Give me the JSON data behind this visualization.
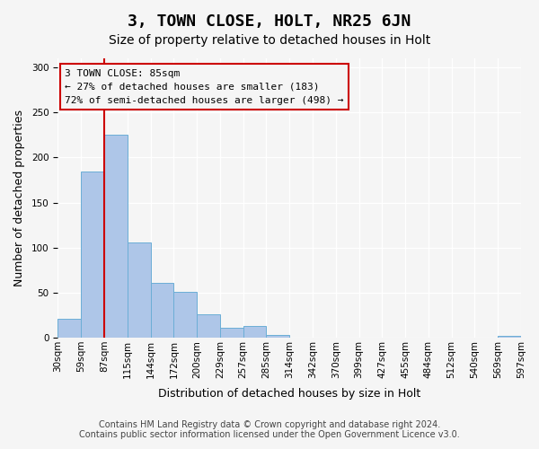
{
  "title": "3, TOWN CLOSE, HOLT, NR25 6JN",
  "subtitle": "Size of property relative to detached houses in Holt",
  "xlabel": "Distribution of detached houses by size in Holt",
  "ylabel": "Number of detached properties",
  "bar_values": [
    21,
    184,
    225,
    106,
    61,
    51,
    26,
    11,
    13,
    3,
    0,
    0,
    0,
    0,
    0,
    0,
    0,
    0,
    0,
    2
  ],
  "bin_labels": [
    "30sqm",
    "59sqm",
    "87sqm",
    "115sqm",
    "144sqm",
    "172sqm",
    "200sqm",
    "229sqm",
    "257sqm",
    "285sqm",
    "314sqm",
    "342sqm",
    "370sqm",
    "399sqm",
    "427sqm",
    "455sqm",
    "484sqm",
    "512sqm",
    "540sqm",
    "569sqm",
    "597sqm"
  ],
  "bar_color": "#aec6e8",
  "bar_edge_color": "#6baed6",
  "marker_line_color": "#cc0000",
  "ylim": [
    0,
    310
  ],
  "yticks": [
    0,
    50,
    100,
    150,
    200,
    250,
    300
  ],
  "annotation_line1": "3 TOWN CLOSE: 85sqm",
  "annotation_line2": "← 27% of detached houses are smaller (183)",
  "annotation_line3": "72% of semi-detached houses are larger (498) →",
  "footnote1": "Contains HM Land Registry data © Crown copyright and database right 2024.",
  "footnote2": "Contains public sector information licensed under the Open Government Licence v3.0.",
  "background_color": "#f5f5f5",
  "grid_color": "#ffffff",
  "title_fontsize": 13,
  "subtitle_fontsize": 10,
  "axis_label_fontsize": 9,
  "tick_fontsize": 7.5,
  "footnote_fontsize": 7
}
